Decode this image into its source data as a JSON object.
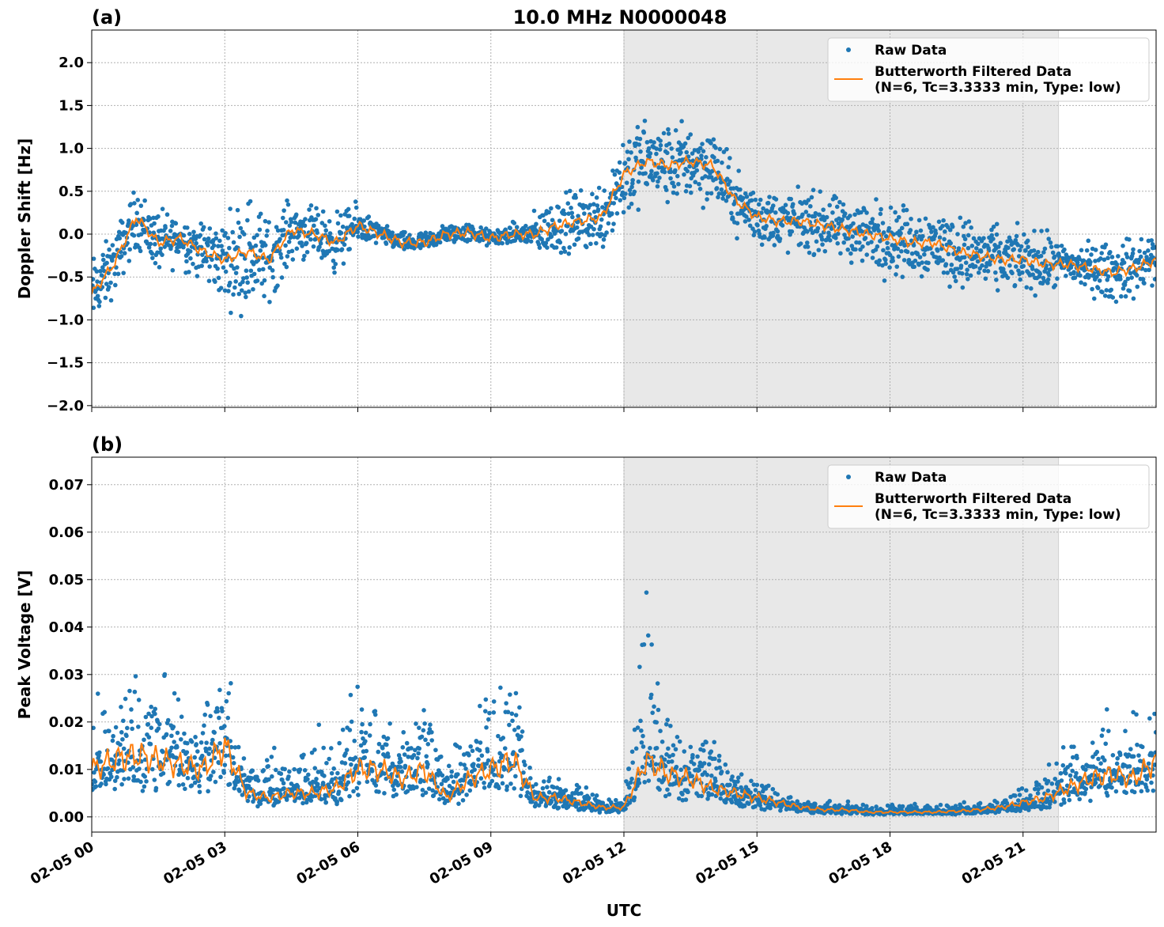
{
  "title": "10.0 MHz N0000048",
  "colors": {
    "raw": "#1f77b4",
    "filtered": "#ff7f0e",
    "shade": "#e8e8e8"
  },
  "chart_data": [
    {
      "type": "scatter+line",
      "panel_label": "(a)",
      "ylabel": "Doppler Shift [Hz]",
      "xlabel": "",
      "xlim_hours_utc": [
        0,
        24
      ],
      "ylim": [
        -2.02,
        2.38
      ],
      "yticks": [
        -2.0,
        -1.5,
        -1.0,
        -0.5,
        0.0,
        0.5,
        1.0,
        1.5,
        2.0
      ],
      "ytick_labels": [
        "−2.0",
        "−1.5",
        "−1.0",
        "−0.5",
        "0.0",
        "0.5",
        "1.0",
        "1.5",
        "2.0"
      ],
      "grid": true,
      "shaded_interval_hours": [
        12.0,
        21.8
      ],
      "legend": {
        "placement": "top-right",
        "entries": [
          "Raw Data",
          "Butterworth Filtered Data",
          "(N=6, Tc=3.3333 min, Type: low)"
        ]
      },
      "x_hours": [
        0,
        0.5,
        1,
        1.5,
        2,
        2.5,
        3,
        3.5,
        4,
        4.5,
        5,
        5.5,
        6,
        6.5,
        7,
        7.5,
        8,
        8.5,
        9,
        9.5,
        10,
        10.5,
        11,
        11.5,
        12,
        12.5,
        13,
        13.5,
        14,
        14.5,
        15,
        15.5,
        16,
        16.5,
        17,
        17.5,
        18,
        18.5,
        19,
        19.5,
        20,
        20.5,
        21,
        21.5,
        22,
        22.5,
        23,
        23.5,
        24
      ],
      "series": [
        {
          "name": "Butterworth Filtered Data",
          "values": [
            -0.7,
            -0.35,
            0.2,
            -0.1,
            -0.05,
            -0.2,
            -0.3,
            -0.2,
            -0.3,
            0.05,
            0.0,
            -0.1,
            0.1,
            0.0,
            -0.1,
            -0.1,
            0.0,
            0.02,
            -0.05,
            0.0,
            0.0,
            0.1,
            0.15,
            0.2,
            0.7,
            0.85,
            0.8,
            0.85,
            0.8,
            0.4,
            0.2,
            0.15,
            0.15,
            0.1,
            0.05,
            0.0,
            -0.05,
            -0.1,
            -0.1,
            -0.2,
            -0.25,
            -0.3,
            -0.3,
            -0.35,
            -0.35,
            -0.4,
            -0.45,
            -0.4,
            -0.3
          ]
        },
        {
          "name": "Raw Data",
          "spread": [
            0.35,
            0.3,
            0.3,
            0.3,
            0.25,
            0.3,
            0.4,
            0.6,
            0.4,
            0.3,
            0.25,
            0.3,
            0.2,
            0.1,
            0.1,
            0.1,
            0.1,
            0.1,
            0.08,
            0.1,
            0.2,
            0.3,
            0.3,
            0.35,
            0.5,
            0.4,
            0.4,
            0.4,
            0.4,
            0.3,
            0.3,
            0.3,
            0.3,
            0.3,
            0.3,
            0.35,
            0.35,
            0.35,
            0.35,
            0.35,
            0.35,
            0.3,
            0.3,
            0.3,
            0.2,
            0.25,
            0.3,
            0.3,
            0.3
          ]
        }
      ]
    },
    {
      "type": "scatter+line",
      "panel_label": "(b)",
      "ylabel": "Peak Voltage [V]",
      "xlabel": "UTC",
      "xlim_hours_utc": [
        0,
        24
      ],
      "ylim": [
        -0.0032,
        0.0758
      ],
      "yticks": [
        0.0,
        0.01,
        0.02,
        0.03,
        0.04,
        0.05,
        0.06,
        0.07
      ],
      "ytick_labels": [
        "0.00",
        "0.01",
        "0.02",
        "0.03",
        "0.04",
        "0.05",
        "0.06",
        "0.07"
      ],
      "xticks_hours": [
        0,
        3,
        6,
        9,
        12,
        15,
        18,
        21
      ],
      "xtick_labels": [
        "02-05 00",
        "02-05 03",
        "02-05 06",
        "02-05 09",
        "02-05 12",
        "02-05 15",
        "02-05 18",
        "02-05 21"
      ],
      "grid": true,
      "shaded_interval_hours": [
        12.0,
        21.8
      ],
      "legend": {
        "placement": "top-right",
        "entries": [
          "Raw Data",
          "Butterworth Filtered Data",
          "(N=6, Tc=3.3333 min, Type: low)"
        ]
      },
      "x_hours": [
        0,
        0.5,
        1,
        1.5,
        2,
        2.5,
        3,
        3.5,
        4,
        4.5,
        5,
        5.5,
        6,
        6.5,
        7,
        7.5,
        8,
        8.5,
        9,
        9.5,
        10,
        10.5,
        11,
        11.5,
        12,
        12.5,
        13,
        13.5,
        14,
        14.5,
        15,
        15.5,
        16,
        16.5,
        17,
        17.5,
        18,
        18.5,
        19,
        19.5,
        20,
        20.5,
        21,
        21.5,
        22,
        22.5,
        23,
        23.5,
        24
      ],
      "series": [
        {
          "name": "Butterworth Filtered Data",
          "values": [
            0.01,
            0.012,
            0.013,
            0.012,
            0.011,
            0.01,
            0.015,
            0.005,
            0.004,
            0.005,
            0.005,
            0.006,
            0.01,
            0.01,
            0.008,
            0.01,
            0.004,
            0.008,
            0.01,
            0.012,
            0.004,
            0.004,
            0.003,
            0.002,
            0.002,
            0.012,
            0.009,
            0.008,
            0.006,
            0.005,
            0.004,
            0.003,
            0.002,
            0.0015,
            0.0015,
            0.001,
            0.001,
            0.001,
            0.001,
            0.0012,
            0.0015,
            0.002,
            0.003,
            0.004,
            0.006,
            0.008,
            0.009,
            0.008,
            0.012
          ]
        },
        {
          "name": "Raw Data",
          "spread": [
            0.008,
            0.01,
            0.012,
            0.01,
            0.01,
            0.008,
            0.015,
            0.004,
            0.006,
            0.004,
            0.008,
            0.004,
            0.012,
            0.01,
            0.006,
            0.01,
            0.004,
            0.008,
            0.01,
            0.012,
            0.003,
            0.003,
            0.003,
            0.001,
            0.001,
            0.02,
            0.008,
            0.008,
            0.006,
            0.004,
            0.003,
            0.002,
            0.001,
            0.001,
            0.001,
            0.001,
            0.001,
            0.001,
            0.001,
            0.001,
            0.001,
            0.001,
            0.002,
            0.003,
            0.006,
            0.007,
            0.008,
            0.007,
            0.008
          ]
        }
      ]
    }
  ]
}
